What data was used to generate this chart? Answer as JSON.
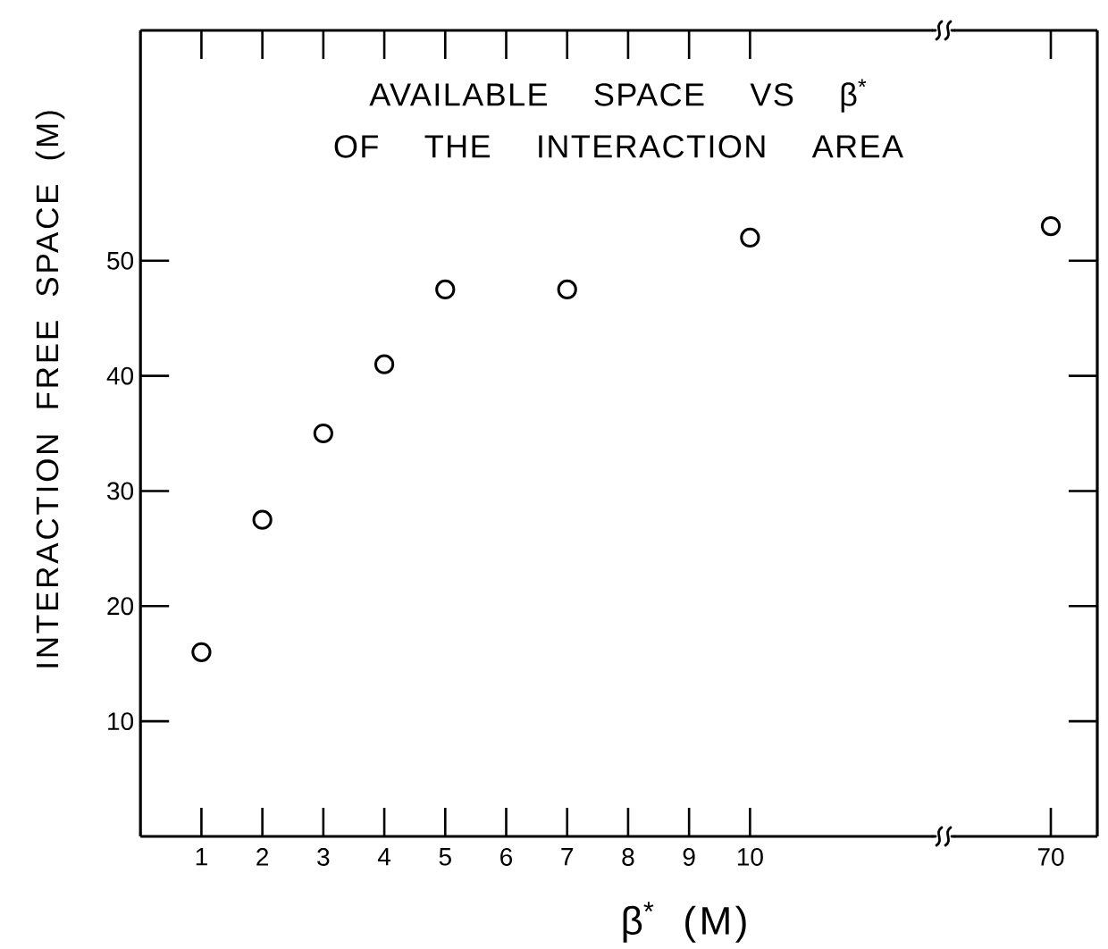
{
  "chart_data": [
    {
      "type": "scatter",
      "title": "AVAILABLE SPACE VS β$^{*}$ OF THE INTERACTION AREA",
      "xlabel": "β$^{*}$ (M)",
      "ylabel": "INTERACTION FREE SPACE (M)",
      "x": [
        1,
        2,
        3,
        4,
        5,
        7,
        10
      ],
      "values": [
        16,
        27.5,
        35,
        41,
        47.5,
        47.5,
        52
      ],
      "color": "#000000",
      "marker": "circle",
      "xlim": [
        0,
        13
      ],
      "ylim": [
        0,
        70
      ],
      "xticks": [
        1,
        2,
        3,
        4,
        5,
        6,
        7,
        8,
        9,
        10
      ],
      "yticks": [
        10,
        20,
        30,
        40,
        50
      ]
    },
    {
      "type": "scatter",
      "categories": [
        "70"
      ],
      "values": [
        53
      ],
      "color": "#000000",
      "marker": "circle",
      "ylim": [
        0,
        70
      ],
      "yticks": [
        10,
        20,
        30,
        40,
        50
      ],
      "tick_labels": "x"
    }
  ]
}
